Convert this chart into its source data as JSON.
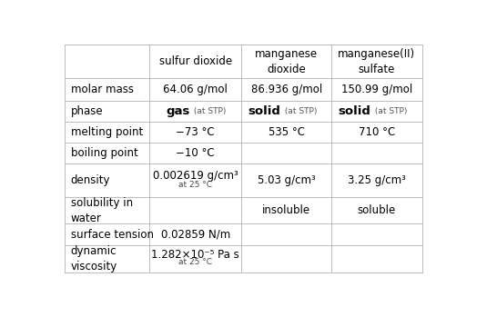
{
  "col_headers": [
    "",
    "sulfur dioxide",
    "manganese\ndioxide",
    "manganese(II)\nsulfate"
  ],
  "rows": [
    {
      "label": "molar mass",
      "cells": [
        "64.06 g/mol",
        "86.936 g/mol",
        "150.99 g/mol"
      ],
      "type": [
        "plain",
        "plain",
        "plain"
      ]
    },
    {
      "label": "phase",
      "cells": [
        [
          "gas",
          " (at STP)"
        ],
        [
          "solid",
          " (at STP)"
        ],
        [
          "solid",
          " (at STP)"
        ]
      ],
      "type": [
        "phase",
        "phase",
        "phase"
      ]
    },
    {
      "label": "melting point",
      "cells": [
        "−73 °C",
        "535 °C",
        "710 °C"
      ],
      "type": [
        "plain",
        "plain",
        "plain"
      ]
    },
    {
      "label": "boiling point",
      "cells": [
        "−10 °C",
        "",
        ""
      ],
      "type": [
        "plain",
        "plain",
        "plain"
      ]
    },
    {
      "label": "density",
      "cells": [
        [
          "0.002619 g/cm³",
          "at 25 °C"
        ],
        [
          "5.03 g/cm³",
          null
        ],
        [
          "3.25 g/cm³",
          null
        ]
      ],
      "type": [
        "two_line",
        "two_line",
        "two_line"
      ]
    },
    {
      "label": "solubility in\nwater",
      "cells": [
        "",
        "insoluble",
        "soluble"
      ],
      "type": [
        "plain",
        "plain",
        "plain"
      ]
    },
    {
      "label": "surface tension",
      "cells": [
        "0.02859 N/m",
        "",
        ""
      ],
      "type": [
        "plain",
        "plain",
        "plain"
      ]
    },
    {
      "label": "dynamic\nviscosity",
      "cells": [
        [
          "1.282×10⁻⁵ Pa s",
          "at 25 °C"
        ],
        null,
        null
      ],
      "type": [
        "two_line",
        "empty",
        "empty"
      ]
    }
  ],
  "bg_color": "#ffffff",
  "grid_color": "#bbbbbb",
  "text_color": "#000000",
  "label_color": "#000000",
  "header_fontsize": 8.5,
  "body_fontsize": 8.5,
  "small_fontsize": 6.5
}
